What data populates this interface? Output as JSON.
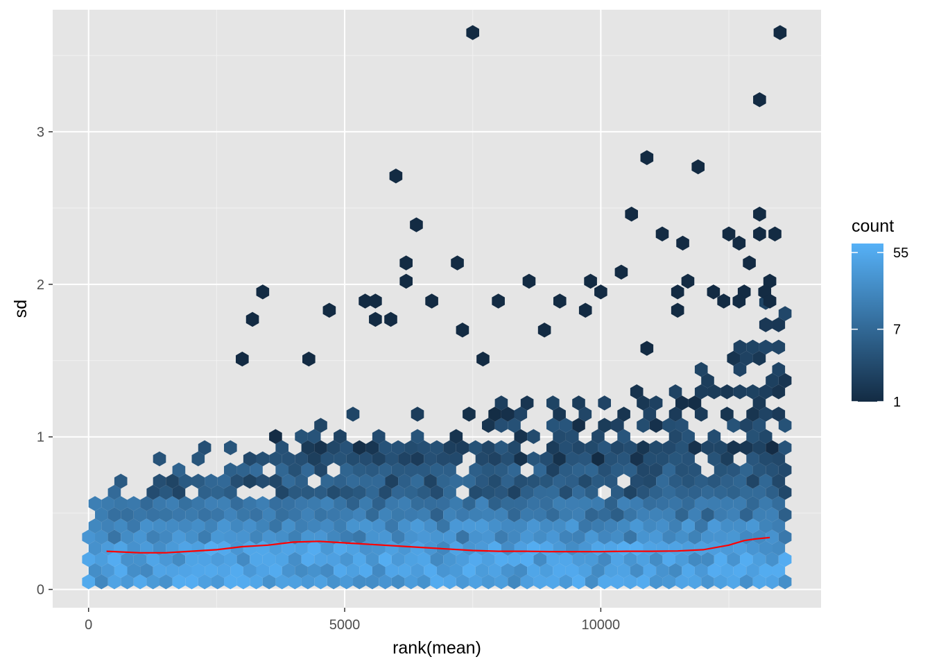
{
  "chart_data": {
    "type": "hexbin",
    "xlabel": "rank(mean)",
    "ylabel": "sd",
    "xlim": [
      -700,
      14300
    ],
    "ylim": [
      -0.12,
      3.8
    ],
    "x_ticks": [
      0,
      5000,
      10000
    ],
    "x_tick_labels": [
      "0",
      "5000",
      "10000"
    ],
    "y_ticks": [
      0,
      1,
      2,
      3
    ],
    "y_tick_labels": [
      "0",
      "1",
      "2",
      "3"
    ],
    "grid": true,
    "panel_background": "#e5e5e5",
    "legend": {
      "title": "count",
      "position": "right",
      "scale": "log",
      "range": [
        1,
        70
      ],
      "ticks": [
        1,
        7,
        55
      ],
      "tick_labels": [
        "1",
        "7",
        "55"
      ],
      "color_low": "#132b43",
      "color_high": "#56b1f7"
    },
    "hex_counts_by_band": [
      {
        "sd_range": [
          0.0,
          0.35
        ],
        "count_range": [
          20,
          70
        ]
      },
      {
        "sd_range": [
          0.35,
          0.6
        ],
        "count_range": [
          7,
          40
        ]
      },
      {
        "sd_range": [
          0.6,
          1.0
        ],
        "count_range": [
          2,
          12
        ]
      },
      {
        "sd_range": [
          1.0,
          2.0
        ],
        "count_range": [
          1,
          4
        ]
      }
    ],
    "outliers": [
      {
        "x": 7500,
        "y": 3.65
      },
      {
        "x": 13500,
        "y": 3.65
      },
      {
        "x": 13100,
        "y": 3.21
      },
      {
        "x": 10900,
        "y": 2.83
      },
      {
        "x": 11900,
        "y": 2.77
      },
      {
        "x": 6000,
        "y": 2.71
      },
      {
        "x": 6400,
        "y": 2.39
      },
      {
        "x": 10600,
        "y": 2.46
      },
      {
        "x": 13100,
        "y": 2.46
      },
      {
        "x": 11200,
        "y": 2.33
      },
      {
        "x": 12500,
        "y": 2.33
      },
      {
        "x": 13100,
        "y": 2.33
      },
      {
        "x": 13400,
        "y": 2.33
      },
      {
        "x": 11600,
        "y": 2.27
      },
      {
        "x": 12700,
        "y": 2.27
      },
      {
        "x": 6200,
        "y": 2.14
      },
      {
        "x": 7200,
        "y": 2.14
      },
      {
        "x": 12900,
        "y": 2.14
      },
      {
        "x": 10400,
        "y": 2.08
      },
      {
        "x": 6200,
        "y": 2.02
      },
      {
        "x": 8600,
        "y": 2.02
      },
      {
        "x": 9800,
        "y": 2.02
      },
      {
        "x": 11700,
        "y": 2.02
      },
      {
        "x": 13300,
        "y": 2.02
      },
      {
        "x": 3400,
        "y": 1.95
      },
      {
        "x": 10000,
        "y": 1.95
      },
      {
        "x": 11500,
        "y": 1.95
      },
      {
        "x": 12200,
        "y": 1.95
      },
      {
        "x": 12800,
        "y": 1.95
      },
      {
        "x": 13200,
        "y": 1.95
      },
      {
        "x": 5400,
        "y": 1.89
      },
      {
        "x": 5600,
        "y": 1.89
      },
      {
        "x": 6700,
        "y": 1.89
      },
      {
        "x": 8000,
        "y": 1.89
      },
      {
        "x": 9200,
        "y": 1.89
      },
      {
        "x": 12400,
        "y": 1.89
      },
      {
        "x": 12700,
        "y": 1.89
      },
      {
        "x": 13300,
        "y": 1.89
      },
      {
        "x": 4700,
        "y": 1.83
      },
      {
        "x": 9700,
        "y": 1.83
      },
      {
        "x": 11500,
        "y": 1.83
      },
      {
        "x": 3200,
        "y": 1.77
      },
      {
        "x": 5600,
        "y": 1.77
      },
      {
        "x": 5900,
        "y": 1.77
      },
      {
        "x": 7300,
        "y": 1.7
      },
      {
        "x": 8900,
        "y": 1.7
      },
      {
        "x": 3000,
        "y": 1.51
      },
      {
        "x": 4300,
        "y": 1.51
      },
      {
        "x": 10900,
        "y": 1.58
      },
      {
        "x": 7700,
        "y": 1.51
      }
    ],
    "trend": {
      "color": "#ff0000",
      "x": [
        350,
        1000,
        1500,
        2000,
        2500,
        3000,
        3500,
        4000,
        4500,
        5000,
        5500,
        6000,
        6500,
        7000,
        7500,
        8000,
        8500,
        9000,
        9500,
        10000,
        10500,
        11000,
        11500,
        12000,
        12500,
        12800,
        13000,
        13300
      ],
      "y": [
        0.25,
        0.24,
        0.24,
        0.25,
        0.26,
        0.28,
        0.29,
        0.31,
        0.315,
        0.305,
        0.295,
        0.285,
        0.275,
        0.265,
        0.255,
        0.25,
        0.25,
        0.248,
        0.248,
        0.248,
        0.25,
        0.25,
        0.252,
        0.26,
        0.29,
        0.32,
        0.33,
        0.34
      ]
    }
  }
}
